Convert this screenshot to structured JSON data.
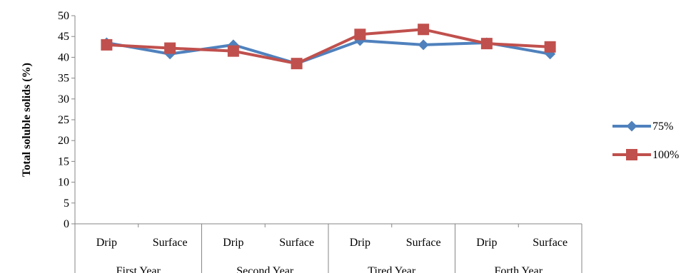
{
  "chart_data": {
    "type": "line",
    "ylabel": "Total soluble solids (%)",
    "ylim": [
      0,
      50
    ],
    "yticks": [
      0,
      5,
      10,
      15,
      20,
      25,
      30,
      35,
      40,
      45,
      50
    ],
    "categories": [
      "Drip",
      "Surface",
      "Drip",
      "Surface",
      "Drip",
      "Surface",
      "Drip",
      "Surface"
    ],
    "groups": [
      "First Year",
      "Second Year",
      "Tired Year",
      "Forth Year"
    ],
    "grid": false,
    "legend_position": "right",
    "series": [
      {
        "name": "75%",
        "color": "#4F81BD",
        "marker": "diamond",
        "values": [
          43.5,
          40.8,
          43.0,
          38.5,
          44.0,
          43.0,
          43.5,
          40.8
        ]
      },
      {
        "name": "100%",
        "color": "#C0504D",
        "marker": "square",
        "values": [
          43.0,
          42.2,
          41.5,
          38.5,
          45.5,
          46.7,
          43.3,
          42.5
        ]
      }
    ]
  }
}
